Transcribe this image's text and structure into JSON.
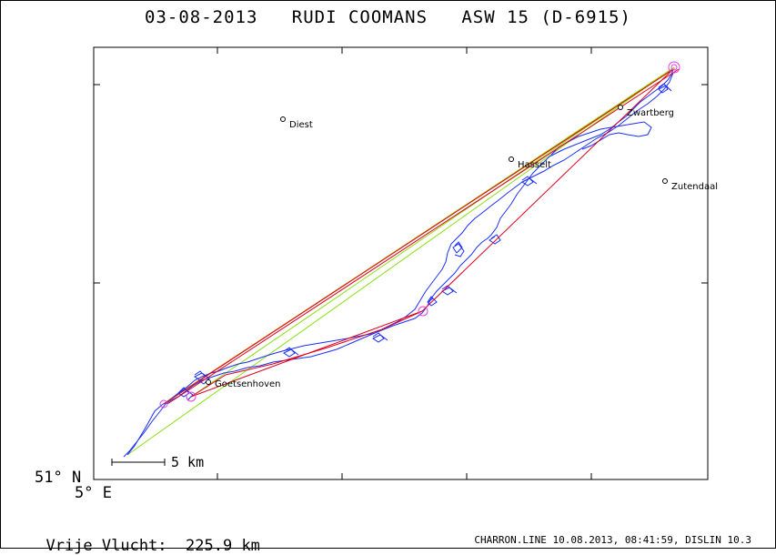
{
  "title": "03-08-2013   RUDI COOMANS   ASW 15 (D-6915)",
  "axis": {
    "lat_label": "51° N",
    "lon_label": "5° E"
  },
  "scale_bar": {
    "label": "5 km"
  },
  "distance": {
    "label": "Vrije Vlucht:",
    "value": "225.9 km"
  },
  "footer": "CHARRON.LINE 10.08.2013, 08:41:59, DISLIN 10.3",
  "places": [
    {
      "name": "Diest"
    },
    {
      "name": "Hasselt"
    },
    {
      "name": "Zwartberg"
    },
    {
      "name": "Zutendaal"
    },
    {
      "name": "Goetsenhoven"
    }
  ],
  "colors": {
    "track": "#1a2eff",
    "legs": "#e0001a",
    "optimized": "#88e010",
    "optimized2": "#e0a000",
    "turnpoint": "#e040e0",
    "axes": "#000000"
  }
}
